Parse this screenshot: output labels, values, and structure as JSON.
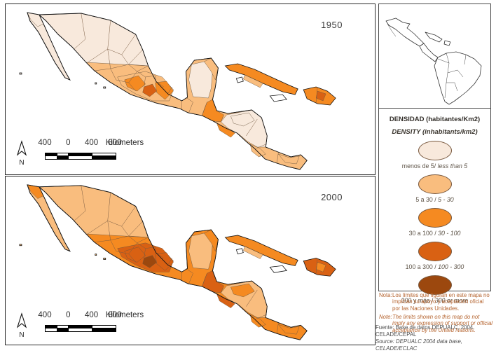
{
  "panels": {
    "p1950": {
      "year": "1950"
    },
    "p2000": {
      "year": "2000"
    }
  },
  "scalebar": {
    "labels": [
      "400",
      "0",
      "400",
      "800"
    ],
    "unit": "Kilometers",
    "north": "N"
  },
  "legend": {
    "title_es": "DENSIDAD (habitantes/Km2)",
    "title_en": "DENSITY (inhabitants/km2)",
    "classes": [
      {
        "range_es": "menos de 5/",
        "range_en": "less than 5",
        "color": "#f8e9dc"
      },
      {
        "range_es": "5 a 30 /",
        "range_en": "5 - 30",
        "color": "#f9bd7e"
      },
      {
        "range_es": "30 a 100 /",
        "range_en": "30 - 100",
        "color": "#f58a21"
      },
      {
        "range_es": "100 a 300 /",
        "range_en": "100 - 300",
        "color": "#d96113"
      },
      {
        "range_es": "300 y más /",
        "range_en": "300 or more",
        "color": "#9c480e"
      }
    ]
  },
  "notes": {
    "nota_label": "Nota:",
    "nota_text": "Los límites que figuran en este mapa no implican su apoyo y aceptación oficial por las Naciones Unidades.",
    "note_label": "Note:",
    "note_text": "The limits shown on this map do not imply any expression of support or official acceptance by the United Nations."
  },
  "source": {
    "fuente": "Fuente: Base de datos DEPUALC, 2004. CELADE/CEPAL",
    "source": "Source: DEPUALC 2004 data base, CELADE/ECLAC"
  },
  "palette": {
    "c1": "#f8e9dc",
    "c2": "#f9bd7e",
    "c3": "#f58a21",
    "c4": "#d96113",
    "c5": "#9c480e",
    "nodata": "#ffffff"
  },
  "map_regions": [
    {
      "id": "mainland",
      "d1950": "c1",
      "d2000": "c2"
    },
    {
      "id": "baja",
      "d1950": "c1",
      "d2000": "c2"
    },
    {
      "id": "baja-north",
      "d1950": "c1",
      "d2000": "c3"
    },
    {
      "id": "south-belt",
      "d1950": "c2",
      "d2000": "c3"
    },
    {
      "id": "central-band",
      "d1950": "c2",
      "d2000": "c4"
    },
    {
      "id": "yucatan-mid",
      "d1950": "c1",
      "d2000": "c2"
    },
    {
      "id": "yucatan-north",
      "d1950": "c2",
      "d2000": "c3"
    },
    {
      "id": "honduras-nicaragua",
      "d1950": "c1",
      "d2000": "c2"
    },
    {
      "id": "honduras-mid",
      "d1950": "c1",
      "d2000": "c3"
    },
    {
      "id": "bajio",
      "d1950": "c3",
      "d2000": "c4"
    },
    {
      "id": "puebla",
      "d1950": "c3",
      "d2000": "c4"
    },
    {
      "id": "mexico-city",
      "d1950": "c4",
      "d2000": "c5"
    },
    {
      "id": "guatemala",
      "d1950": "c3",
      "d2000": "c4"
    },
    {
      "id": "el-salvador",
      "d1950": "c3",
      "d2000": "c4"
    },
    {
      "id": "costa-rica",
      "d1950": "c2",
      "d2000": "c3"
    },
    {
      "id": "panama",
      "d1950": "c2",
      "d2000": "c3"
    },
    {
      "id": "cuba",
      "d1950": "c3",
      "d2000": "c3"
    },
    {
      "id": "cuba-mid",
      "d1950": "c2",
      "d2000": "c2"
    },
    {
      "id": "isla-juventud",
      "d1950": "nodata",
      "d2000": "nodata"
    },
    {
      "id": "jamaica",
      "d1950": "nodata",
      "d2000": "nodata"
    },
    {
      "id": "hispaniola",
      "d1950": "c3",
      "d2000": "c4"
    },
    {
      "id": "hispaniola-mid",
      "d1950": "c4",
      "d2000": "c3"
    },
    {
      "id": "islets",
      "d1950": "c1",
      "d2000": "c2"
    }
  ]
}
